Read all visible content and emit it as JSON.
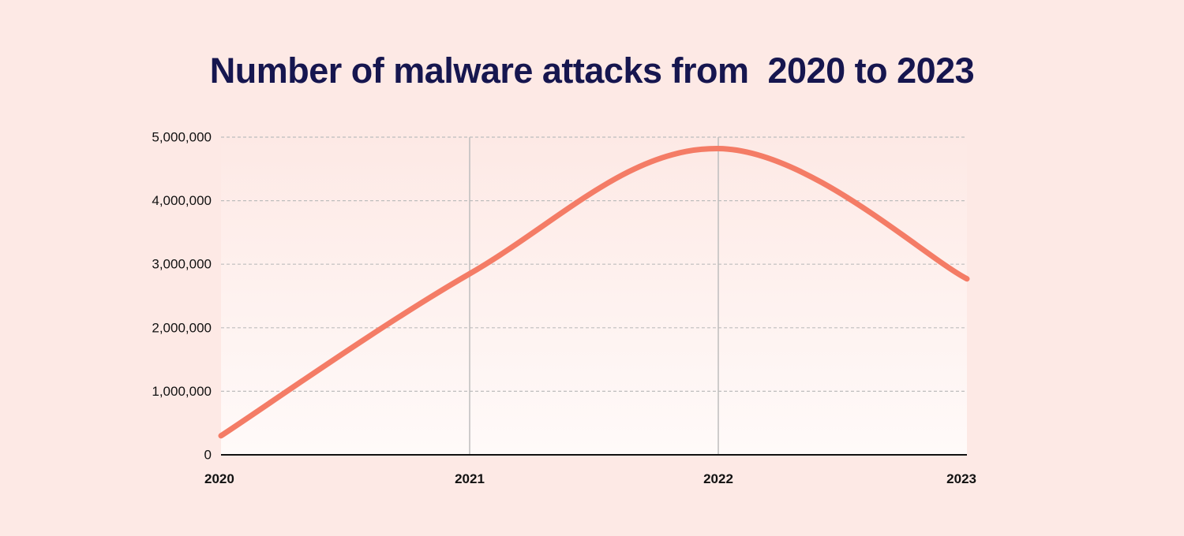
{
  "chart_data": {
    "type": "line",
    "title": "Number of malware attacks from  2020 to 2023",
    "xlabel": "",
    "ylabel": "",
    "categories": [
      "2020",
      "2021",
      "2022",
      "2023"
    ],
    "series": [
      {
        "values": [
          300000,
          2850000,
          4820000,
          2770000
        ]
      }
    ],
    "ylim": [
      0,
      5000000
    ],
    "yticks": [
      0,
      1000000,
      2000000,
      3000000,
      4000000,
      5000000
    ],
    "ytick_labels": [
      "0",
      "1,000,000",
      "2,000,000",
      "3,000,000",
      "4,000,000",
      "5,000,000"
    ],
    "grid": "horizontal dashed, vertical lines at 2021 and 2022",
    "legend": "none",
    "colors": {
      "background": "#fde9e5",
      "title": "#16164f",
      "line": "#f47c66",
      "grid": "#bdbdbd",
      "axis": "#111111"
    }
  }
}
